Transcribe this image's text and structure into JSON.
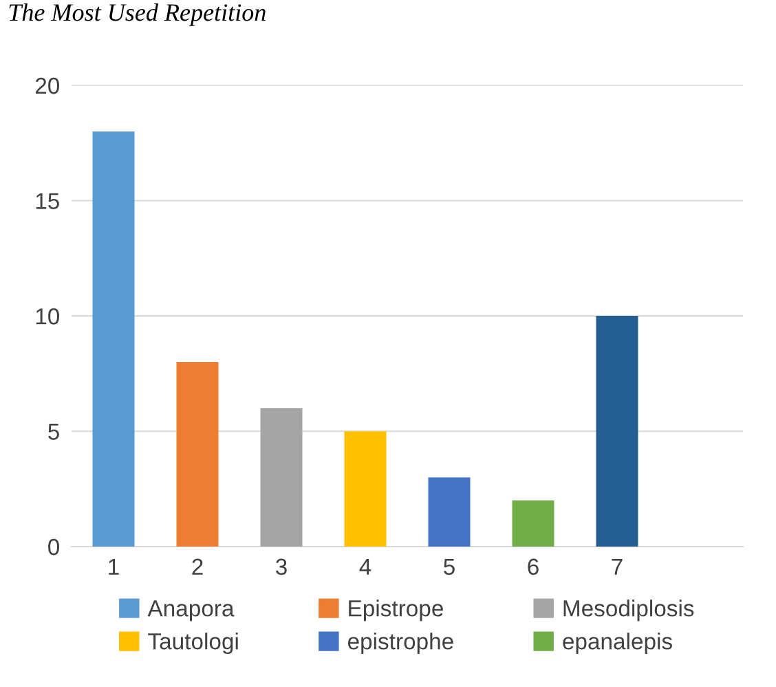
{
  "chart_data": {
    "type": "bar",
    "title": "The Most Used Repetition",
    "categories": [
      "1",
      "2",
      "3",
      "4",
      "5",
      "6",
      "7",
      null
    ],
    "series": [
      {
        "name": "Anapora",
        "color": "#5b9bd5",
        "values": [
          18,
          null,
          null,
          null,
          null,
          null,
          null,
          null
        ]
      },
      {
        "name": "Epistrope",
        "color": "#ed7d31",
        "values": [
          null,
          8,
          null,
          null,
          null,
          null,
          null,
          null
        ]
      },
      {
        "name": "Mesodiplosis",
        "color": "#a5a5a5",
        "values": [
          null,
          null,
          6,
          null,
          null,
          null,
          null,
          null
        ]
      },
      {
        "name": "Tautologi",
        "color": "#ffc000",
        "values": [
          null,
          null,
          null,
          5,
          null,
          null,
          null,
          null
        ]
      },
      {
        "name": "epistrophe",
        "color": "#4472c4",
        "values": [
          null,
          null,
          null,
          null,
          3,
          null,
          null,
          null
        ]
      },
      {
        "name": "epanalepis",
        "color": "#70ad47",
        "values": [
          null,
          null,
          null,
          null,
          null,
          2,
          null,
          null
        ]
      },
      {
        "color": "#255e91",
        "values": [
          null,
          null,
          null,
          null,
          null,
          null,
          10,
          null
        ]
      }
    ],
    "ylim": [
      0,
      20
    ],
    "yticks": [
      0,
      5,
      10,
      15,
      20
    ],
    "grid": "y",
    "legend": "bottom"
  }
}
